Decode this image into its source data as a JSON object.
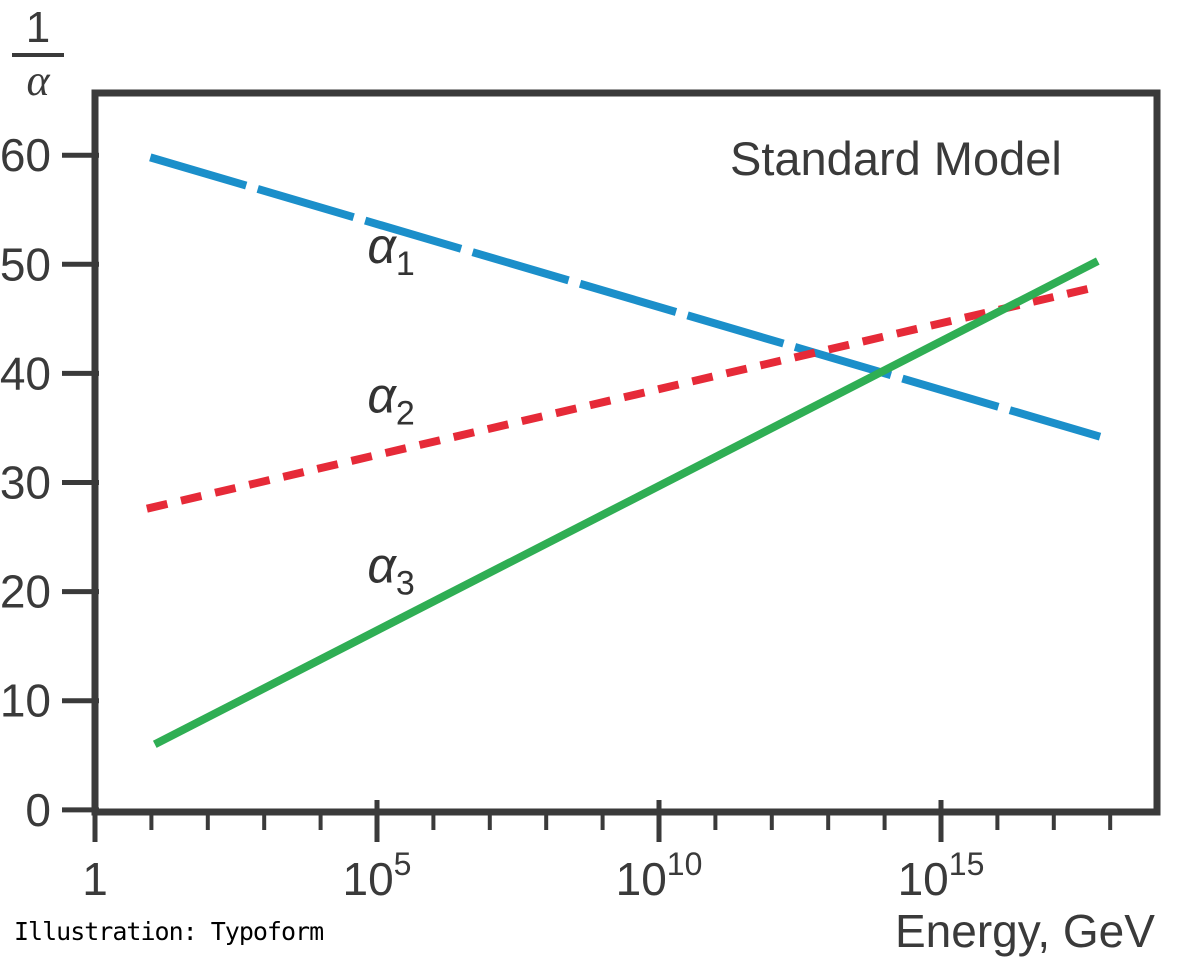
{
  "credit": "Illustration: Typoform",
  "chart_data": {
    "type": "line",
    "title": "Standard Model",
    "xlabel": "Energy, GeV",
    "ylabel": {
      "numerator": "1",
      "denominator": "α"
    },
    "x_scale": "log10",
    "x_range_log10": [
      0,
      18.83
    ],
    "y_range": [
      -0.2,
      65.7
    ],
    "grid": false,
    "legend_position": "inline-labels",
    "axis_color": "#3a3a3a",
    "x_ticks": [
      {
        "log10": 0,
        "base": "1",
        "exp": ""
      },
      {
        "log10": 5,
        "base": "10",
        "exp": "5"
      },
      {
        "log10": 10,
        "base": "10",
        "exp": "10"
      },
      {
        "log10": 15,
        "base": "10",
        "exp": "15"
      }
    ],
    "x_minor_ticks_log10": [
      1,
      2,
      3,
      4,
      6,
      7,
      8,
      9,
      11,
      12,
      13,
      14,
      16,
      17,
      18
    ],
    "y_ticks": [
      0,
      10,
      20,
      30,
      40,
      50,
      60
    ],
    "series": [
      {
        "name": "alpha1",
        "label": {
          "base": "α",
          "sub": "1"
        },
        "color": "#1b8fca",
        "style": "long-dash",
        "points_log10x_y": [
          [
            0.98,
            59.8
          ],
          [
            17.82,
            34.2
          ]
        ],
        "label_pos": [
          5.25,
          51.6
        ]
      },
      {
        "name": "alpha2",
        "label": {
          "base": "α",
          "sub": "2"
        },
        "color": "#e62a38",
        "style": "short-dash",
        "points_log10x_y": [
          [
            0.92,
            27.6
          ],
          [
            17.82,
            48.0
          ]
        ],
        "label_pos": [
          5.25,
          37.9
        ]
      },
      {
        "name": "alpha3",
        "label": {
          "base": "α",
          "sub": "3"
        },
        "color": "#2fae54",
        "style": "solid",
        "points_log10x_y": [
          [
            1.06,
            6.0
          ],
          [
            17.78,
            50.3
          ]
        ],
        "label_pos": [
          5.25,
          22.3
        ]
      }
    ]
  }
}
